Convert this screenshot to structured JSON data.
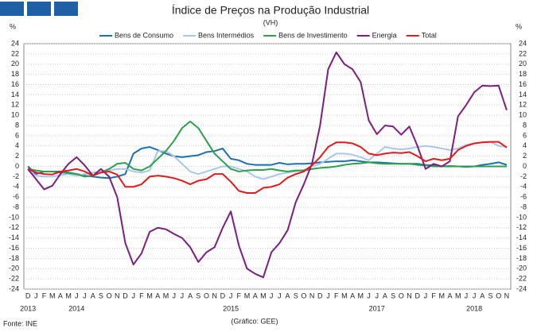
{
  "chart_data": {
    "type": "line",
    "title": "Índice de Preços na Produção Industrial",
    "subtitle": "(VH)",
    "y_unit_left": "%",
    "y_unit_right": "%",
    "source": "Fonte: INE",
    "credit": "(Gráfico: GEE)",
    "categories": [
      "D",
      "J",
      "F",
      "M",
      "A",
      "M",
      "J",
      "J",
      "A",
      "S",
      "O",
      "N",
      "D",
      "J",
      "F",
      "M",
      "A",
      "M",
      "J",
      "J",
      "A",
      "S",
      "O",
      "N",
      "D",
      "J",
      "F",
      "M",
      "A",
      "M",
      "J",
      "J",
      "A",
      "S",
      "O",
      "N",
      "D",
      "J",
      "F",
      "M",
      "A",
      "M",
      "J",
      "J",
      "A",
      "S",
      "O",
      "N",
      "D",
      "J",
      "F",
      "M",
      "A",
      "M",
      "J",
      "J",
      "A",
      "S",
      "O",
      "N"
    ],
    "years": [
      "2013",
      null,
      null,
      null,
      null,
      null,
      "2014",
      null,
      null,
      null,
      null,
      null,
      null,
      null,
      null,
      null,
      null,
      null,
      null,
      null,
      null,
      null,
      null,
      null,
      null,
      "2015",
      null,
      null,
      null,
      null,
      null,
      null,
      null,
      null,
      null,
      null,
      null,
      null,
      null,
      null,
      null,
      null,
      null,
      "2017",
      null,
      null,
      null,
      null,
      null,
      null,
      null,
      null,
      null,
      null,
      null,
      "2018",
      null,
      null,
      null,
      null
    ],
    "ylim": [
      -24,
      24
    ],
    "yticks": [
      -24,
      -22,
      -20,
      -18,
      -16,
      -14,
      -12,
      -10,
      -8,
      -6,
      -4,
      -2,
      0,
      2,
      4,
      6,
      8,
      10,
      12,
      14,
      16,
      18,
      20,
      22,
      24
    ],
    "grid": true,
    "series": [
      {
        "name": "Bens de Consumo",
        "color": "#1f6fae",
        "values": [
          0,
          -1.5,
          -1,
          -1,
          -1,
          -1.2,
          -1.5,
          -1.8,
          -2,
          -2.2,
          -2.3,
          -2,
          -1.5,
          2.5,
          3.5,
          3.8,
          3.2,
          2.5,
          2,
          1.8,
          2,
          2.2,
          2.8,
          3,
          3.5,
          1.5,
          1.2,
          0.5,
          0.3,
          0.3,
          0.3,
          0.7,
          0.4,
          0.5,
          0.5,
          0.6,
          0.8,
          0.9,
          1,
          1,
          1.2,
          1,
          0.8,
          0.8,
          0.7,
          0.6,
          0.5,
          0.5,
          0.5,
          0.3,
          0.2,
          0,
          0,
          0,
          -0.1,
          0,
          0.3,
          0.5,
          0.8,
          0.3
        ]
      },
      {
        "name": "Bens Intermédios",
        "color": "#a9c7ea",
        "values": [
          -0.8,
          -1.8,
          -2,
          -2,
          -1.7,
          -1.5,
          -1.8,
          -1.5,
          -1.2,
          -1,
          -0.8,
          -0.5,
          -0.5,
          -1,
          -1.2,
          -0.8,
          3,
          3,
          2,
          0.5,
          -1,
          -1.5,
          -1,
          -0.5,
          0,
          0,
          -0.5,
          -1,
          -2,
          -2.5,
          -2,
          -1.5,
          -1.2,
          -1,
          -0.7,
          0,
          0.5,
          1.5,
          2.5,
          2.5,
          2.3,
          1.8,
          1.2,
          2.5,
          3.8,
          3.5,
          3.3,
          3.5,
          3.8,
          4,
          3.8,
          3.5,
          3.2,
          3.5,
          4.2,
          4.5,
          4.7,
          4.8,
          4,
          3.8
        ]
      },
      {
        "name": "Bens de Investimento",
        "color": "#2e9e4f",
        "values": [
          -0.5,
          -0.8,
          -1,
          -1,
          -1.2,
          -1.3,
          -1.5,
          -2,
          -1.8,
          -1.2,
          -0.5,
          0.5,
          0.7,
          -0.5,
          -0.8,
          0,
          1.5,
          3,
          5,
          7.5,
          8.8,
          7.5,
          5,
          2.5,
          1,
          -0.5,
          -1,
          -0.8,
          -0.7,
          -0.7,
          -0.5,
          -0.8,
          -1,
          -0.8,
          -0.8,
          -0.5,
          -0.3,
          -0.2,
          0,
          0.3,
          0.5,
          0.6,
          0.8,
          0.6,
          0.5,
          0.5,
          0.5,
          0.5,
          0.3,
          0.2,
          0,
          0,
          0.1,
          0,
          0,
          0,
          0,
          0,
          0,
          0
        ]
      },
      {
        "name": "Energia",
        "color": "#7b1f7f",
        "values": [
          -0.5,
          -2.5,
          -4.5,
          -3.8,
          -1.5,
          0.5,
          1.8,
          0.2,
          -1.8,
          -0.5,
          -2,
          -6,
          -15,
          -19.2,
          -17,
          -12.8,
          -12,
          -12.3,
          -13.2,
          -14,
          -15.8,
          -18.7,
          -16.8,
          -15.8,
          -12,
          -8.8,
          -15.5,
          -20,
          -21,
          -21.7,
          -16.8,
          -15,
          -12.5,
          -7,
          -3.5,
          0.5,
          8,
          19,
          22.3,
          20,
          19,
          16.5,
          9,
          6.3,
          8,
          7.8,
          6.2,
          7.8,
          4,
          -0.5,
          0.5,
          0,
          1,
          9.8,
          12,
          14.5,
          15.8,
          15.7,
          15.8,
          11
        ]
      },
      {
        "name": "Total",
        "color": "#e31a1c",
        "values": [
          -0.5,
          -1.2,
          -1.5,
          -1.6,
          -1,
          -0.8,
          -0.5,
          -1,
          -1.8,
          -1.2,
          -1,
          -1.6,
          -4,
          -4,
          -3.5,
          -2,
          -1.8,
          -2,
          -2.3,
          -2.8,
          -3.5,
          -2.8,
          -2.5,
          -1.5,
          -1.5,
          -3,
          -4.8,
          -5.2,
          -5.2,
          -4.2,
          -4,
          -3.5,
          -2.2,
          -1.5,
          -1,
          0.2,
          1.8,
          3.8,
          4.7,
          4.7,
          4.5,
          3.8,
          2.5,
          2.2,
          2.5,
          2.7,
          2.6,
          2.8,
          2,
          1,
          1.5,
          1.2,
          1.5,
          3.2,
          4,
          4.5,
          4.7,
          4.8,
          4.8,
          3.7
        ]
      }
    ]
  }
}
